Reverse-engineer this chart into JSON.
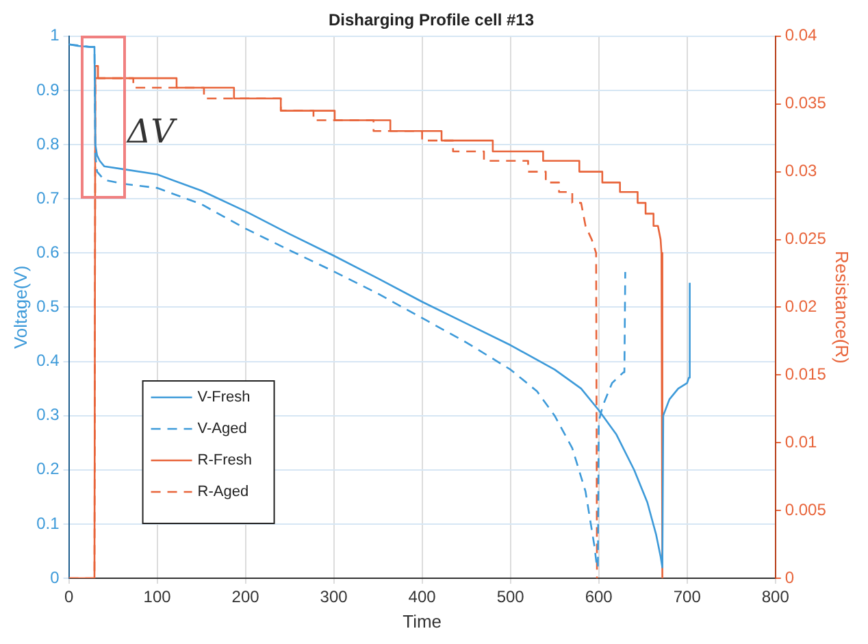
{
  "chart_data": {
    "type": "line",
    "title": "Disharging Profile cell #13",
    "xlabel": "Time",
    "ylabel": "Voltage(V)",
    "y2label": "Resistance(R)",
    "xlim": [
      0,
      800
    ],
    "xticks": [
      0,
      100,
      200,
      300,
      400,
      500,
      600,
      700,
      800
    ],
    "ylim": [
      0,
      1
    ],
    "yticks": [
      0,
      0.1,
      0.2,
      0.3,
      0.4,
      0.5,
      0.6,
      0.7,
      0.8,
      0.9,
      1
    ],
    "y2lim": [
      0,
      0.04
    ],
    "y2ticks": [
      0,
      0.005,
      0.01,
      0.015,
      0.02,
      0.025,
      0.03,
      0.035,
      0.04
    ],
    "grid": true,
    "legend": "bottom left",
    "marker": "none",
    "annotations": [
      "ΔV"
    ],
    "series": [
      {
        "name": "V-Fresh",
        "color": "#3d9ad9",
        "line_style": "solid",
        "x": [
          0,
          10,
          25,
          29,
          30,
          32,
          35,
          40,
          60,
          100,
          150,
          200,
          250,
          300,
          350,
          400,
          450,
          500,
          550,
          580,
          600,
          620,
          640,
          655,
          665,
          670,
          672,
          673,
          680,
          690,
          700,
          702,
          703
        ],
        "values": [
          0.985,
          0.982,
          0.98,
          0.98,
          0.8,
          0.78,
          0.77,
          0.76,
          0.755,
          0.745,
          0.715,
          0.677,
          0.635,
          0.595,
          0.553,
          0.51,
          0.47,
          0.43,
          0.385,
          0.35,
          0.31,
          0.265,
          0.2,
          0.14,
          0.08,
          0.04,
          0.02,
          0.3,
          0.33,
          0.35,
          0.36,
          0.37,
          0.545
        ]
      },
      {
        "name": "V-Aged",
        "color": "#3d9ad9",
        "line_style": "dashed",
        "x": [
          0,
          25,
          29,
          30,
          32,
          40,
          60,
          100,
          150,
          200,
          250,
          300,
          350,
          400,
          450,
          500,
          530,
          550,
          570,
          585,
          595,
          598,
          599,
          600,
          605,
          615,
          628,
          629,
          630
        ],
        "values": [
          0.985,
          0.98,
          0.98,
          0.78,
          0.75,
          0.735,
          0.728,
          0.72,
          0.69,
          0.645,
          0.605,
          0.566,
          0.525,
          0.48,
          0.435,
          0.385,
          0.345,
          0.3,
          0.24,
          0.16,
          0.06,
          0.02,
          0.02,
          0.29,
          0.32,
          0.36,
          0.38,
          0.38,
          0.565
        ]
      },
      {
        "name": "R-Fresh",
        "color": "#e8643a",
        "line_style": "solid",
        "axis": "y2",
        "x": [
          0,
          29,
          30,
          32,
          32,
          33,
          33,
          122,
          122,
          187,
          187,
          240,
          240,
          301,
          301,
          364,
          364,
          422,
          422,
          480,
          480,
          537,
          537,
          578,
          578,
          604,
          604,
          624,
          624,
          644,
          644,
          653,
          653,
          662,
          662,
          667,
          670,
          671,
          672
        ],
        "values": [
          0,
          0,
          0.0378,
          0.0378,
          0.0378,
          0.0378,
          0.0369,
          0.0369,
          0.0362,
          0.0362,
          0.0354,
          0.0354,
          0.0345,
          0.0345,
          0.0338,
          0.0338,
          0.033,
          0.033,
          0.0323,
          0.0323,
          0.0315,
          0.0315,
          0.0308,
          0.0308,
          0.03,
          0.03,
          0.0292,
          0.0292,
          0.0285,
          0.0285,
          0.0277,
          0.0277,
          0.0269,
          0.0269,
          0.026,
          0.026,
          0.025,
          0.024,
          0
        ]
      },
      {
        "name": "R-Aged",
        "color": "#e8643a",
        "line_style": "dashed",
        "axis": "y2",
        "x": [
          0,
          29,
          30,
          73,
          73,
          153,
          153,
          240,
          240,
          277,
          277,
          345,
          345,
          400,
          400,
          435,
          435,
          470,
          470,
          520,
          520,
          540,
          540,
          555,
          555,
          570,
          570,
          580,
          585,
          592,
          597,
          598
        ],
        "values": [
          0,
          0,
          0.0369,
          0.0369,
          0.0362,
          0.0362,
          0.0354,
          0.0354,
          0.0345,
          0.0345,
          0.0338,
          0.0338,
          0.033,
          0.033,
          0.0323,
          0.0323,
          0.0315,
          0.0315,
          0.0308,
          0.0308,
          0.03,
          0.03,
          0.0292,
          0.0292,
          0.0285,
          0.0285,
          0.0277,
          0.0277,
          0.026,
          0.025,
          0.024,
          0
        ]
      }
    ]
  }
}
